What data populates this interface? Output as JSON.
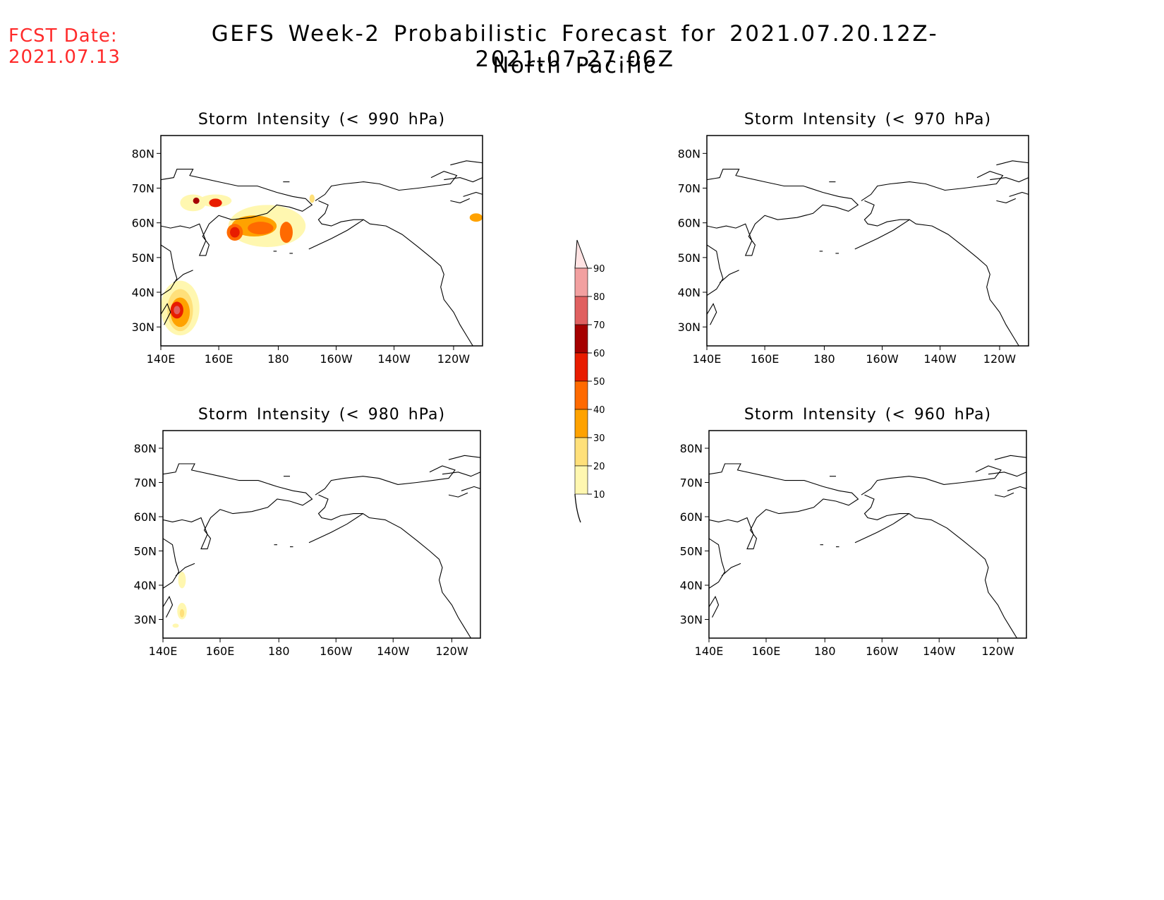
{
  "header": {
    "fcst_label": "FCST Date:",
    "fcst_date": "2021.07.13",
    "title_line1": "GEFS Week-2 Probabilistic Forecast for 2021.07.20.12Z-2021.07.27.06Z",
    "title_line2": "North Pacific"
  },
  "axes": {
    "lon_ticks": [
      "140E",
      "160E",
      "180",
      "160W",
      "140W",
      "120W"
    ],
    "lat_ticks": [
      "80N",
      "70N",
      "60N",
      "50N",
      "40N",
      "30N"
    ]
  },
  "panels": [
    {
      "id": "p990",
      "title": "Storm Intensity (< 990 hPa)"
    },
    {
      "id": "p970",
      "title": "Storm Intensity (< 970 hPa)"
    },
    {
      "id": "p980",
      "title": "Storm Intensity (< 980 hPa)"
    },
    {
      "id": "p960",
      "title": "Storm Intensity (< 960 hPa)"
    }
  ],
  "colorbar": {
    "levels": [
      "10",
      "20",
      "30",
      "40",
      "50",
      "60",
      "70",
      "80",
      "90"
    ],
    "colors": [
      "#fff7b0",
      "#ffe07a",
      "#ffa200",
      "#ff6a00",
      "#e81c00",
      "#a50000",
      "#e06060",
      "#f2a0a0",
      "#ffe3e3"
    ]
  }
}
